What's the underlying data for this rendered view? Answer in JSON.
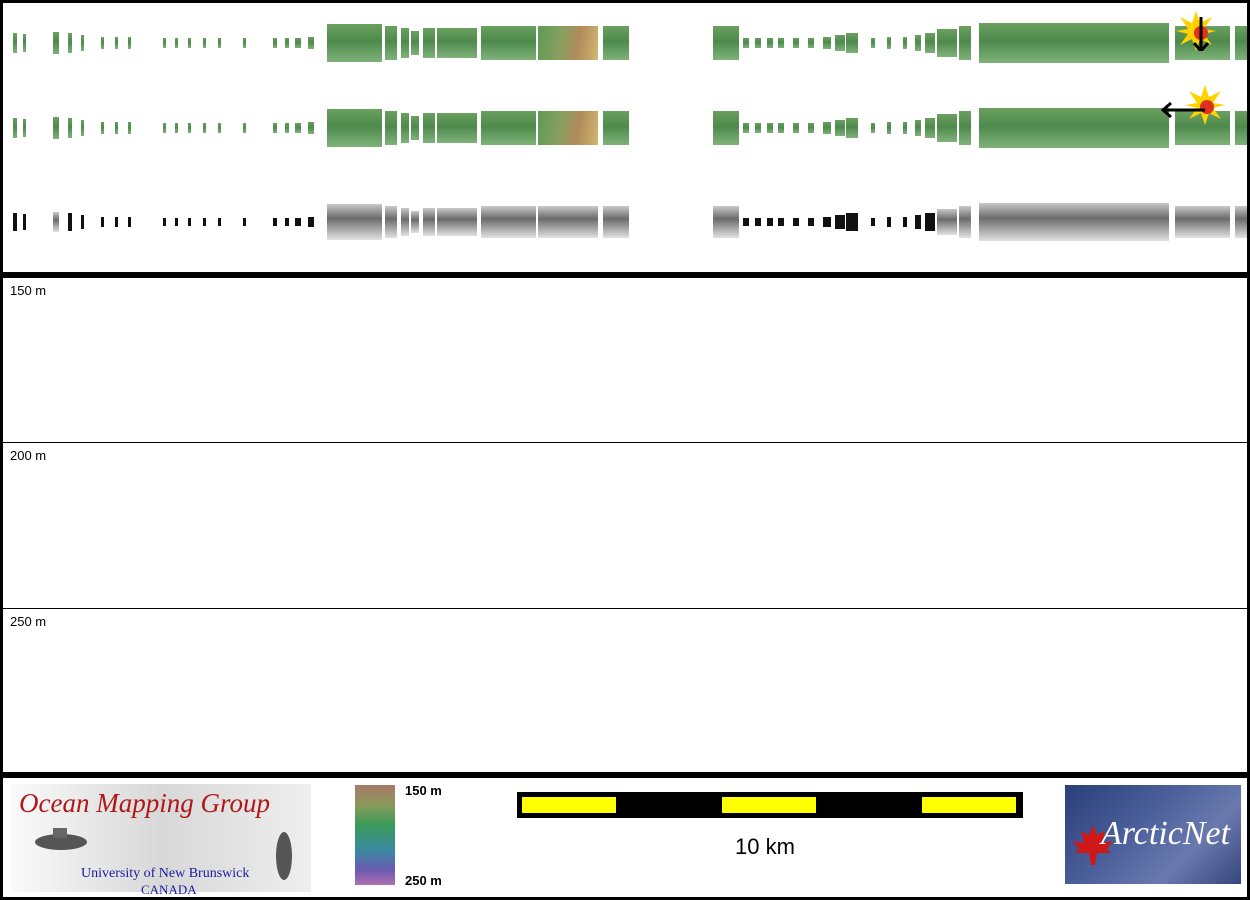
{
  "depth_bands": [
    {
      "label": "150 m"
    },
    {
      "label": "200 m"
    },
    {
      "label": "250 m"
    }
  ],
  "legend": {
    "colorbar_top_label": "150 m",
    "colorbar_bottom_label": "250 m",
    "scale_label": "10 km"
  },
  "logos": {
    "omg_title": "Ocean Mapping Group",
    "omg_sub1": "University of New Brunswick",
    "omg_sub2": "CANADA",
    "arctic": "ArcticNet"
  },
  "colors": {
    "scale_bar_fill": "#ffff00",
    "omg_title_color": "#b01818",
    "arctic_bg": "#2a3e7a"
  },
  "illumination_icons": [
    {
      "name": "sun-north-icon",
      "arrow": "down"
    },
    {
      "name": "sun-east-icon",
      "arrow": "left"
    }
  ]
}
